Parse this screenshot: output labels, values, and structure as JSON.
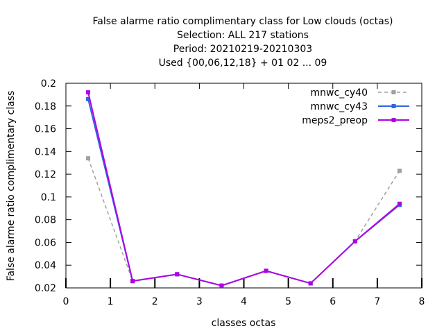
{
  "chart_data": {
    "type": "line",
    "title_lines": [
      "False alarme ratio complimentary class  for Low clouds (octas)",
      "Selection: ALL    217 stations",
      "Period: 20210219-20210303",
      "Used {00,06,12,18} + 01 02 ... 09"
    ],
    "xlabel": "classes octas",
    "ylabel": "False alarme ratio complimentary class",
    "xlim": [
      0,
      8
    ],
    "ylim": [
      0.02,
      0.2
    ],
    "xticks": [
      0,
      1,
      2,
      3,
      4,
      5,
      6,
      7,
      8
    ],
    "yticks": [
      0.02,
      0.04,
      0.06,
      0.08,
      0.1,
      0.12,
      0.14,
      0.16,
      0.18,
      0.2
    ],
    "xtick_labels": [
      "0",
      "1",
      "2",
      "3",
      "4",
      "5",
      "6",
      "7",
      "8"
    ],
    "ytick_labels": [
      "0.02",
      "0.04",
      "0.06",
      "0.08",
      "0.1",
      "0.12",
      "0.14",
      "0.16",
      "0.18",
      "0.2"
    ],
    "grid": false,
    "legend_position": "top-right",
    "x": [
      0.5,
      1.5,
      2.5,
      3.5,
      4.5,
      5.5,
      6.5,
      7.5
    ],
    "series": [
      {
        "name": "mnwc_cy40",
        "color": "#a0a0a0",
        "dashed": true,
        "values": [
          0.134,
          0.026,
          0.032,
          0.022,
          0.035,
          0.024,
          0.061,
          0.123
        ]
      },
      {
        "name": "mnwc_cy43",
        "color": "#3264e0",
        "dashed": false,
        "values": [
          0.186,
          0.026,
          0.032,
          0.022,
          0.035,
          0.024,
          0.061,
          0.093
        ]
      },
      {
        "name": "meps2_preop",
        "color": "#b000e6",
        "dashed": false,
        "values": [
          0.192,
          0.026,
          0.032,
          0.022,
          0.035,
          0.024,
          0.061,
          0.094
        ]
      }
    ]
  }
}
